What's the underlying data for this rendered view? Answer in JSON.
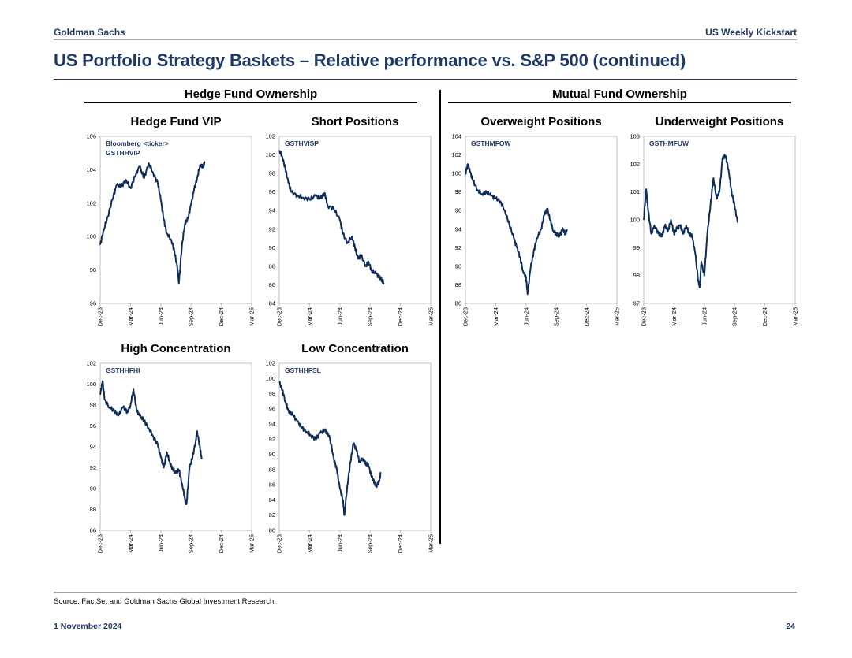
{
  "header": {
    "left": "Goldman Sachs",
    "right": "US Weekly Kickstart",
    "title": "US Portfolio Strategy Baskets – Relative performance vs. S&P 500 (continued)"
  },
  "sections": {
    "left": "Hedge Fund Ownership",
    "right": "Mutual Fund Ownership"
  },
  "footer": {
    "source": "Source: FactSet and Goldman Sachs Global Investment Research.",
    "date": "1 November 2024",
    "page": "24"
  },
  "colors": {
    "line": "#0d2d5b",
    "text": "#1f3864"
  },
  "chart_data": [
    {
      "id": "hfvip",
      "type": "line",
      "title": "Hedge Fund VIP",
      "annotation": [
        "Bloomberg <ticker>",
        "GSTHHVIP"
      ],
      "xticks": [
        "Dec-23",
        "Mar-24",
        "Jun-24",
        "Sep-24",
        "Dec-24",
        "Mar-25"
      ],
      "ylim": [
        96,
        106
      ],
      "yticks": [
        96,
        98,
        100,
        102,
        104,
        106
      ],
      "series": [
        {
          "name": "GSTHHVIP",
          "values": [
            [
              0,
              99.5
            ],
            [
              0.1,
              100.3
            ],
            [
              0.25,
              101.2
            ],
            [
              0.4,
              102.2
            ],
            [
              0.55,
              103.1
            ],
            [
              0.7,
              103.0
            ],
            [
              0.85,
              103.4
            ],
            [
              1.0,
              102.9
            ],
            [
              1.15,
              103.6
            ],
            [
              1.3,
              104.2
            ],
            [
              1.45,
              103.5
            ],
            [
              1.6,
              104.4
            ],
            [
              1.75,
              103.8
            ],
            [
              1.9,
              103.2
            ],
            [
              2.0,
              102.2
            ],
            [
              2.1,
              101.0
            ],
            [
              2.2,
              100.2
            ],
            [
              2.35,
              99.8
            ],
            [
              2.45,
              99.1
            ],
            [
              2.55,
              98.1
            ],
            [
              2.6,
              97.2
            ],
            [
              2.7,
              99.5
            ],
            [
              2.8,
              100.8
            ],
            [
              2.9,
              101.1
            ],
            [
              3.0,
              101.9
            ],
            [
              3.1,
              102.8
            ],
            [
              3.2,
              103.5
            ],
            [
              3.3,
              104.3
            ],
            [
              3.4,
              104.2
            ],
            [
              3.45,
              104.4
            ]
          ]
        }
      ]
    },
    {
      "id": "short",
      "type": "line",
      "title": "Short Positions",
      "annotation": [
        "GSTHVISP"
      ],
      "xticks": [
        "Dec-23",
        "Mar-24",
        "Jun-24",
        "Sep-24",
        "Dec-24",
        "Mar-25"
      ],
      "ylim": [
        84,
        102
      ],
      "yticks": [
        84,
        86,
        88,
        90,
        92,
        94,
        96,
        98,
        100,
        102
      ],
      "series": [
        {
          "name": "GSTHVISP",
          "values": [
            [
              0,
              100.5
            ],
            [
              0.1,
              99.8
            ],
            [
              0.2,
              98.5
            ],
            [
              0.3,
              97.0
            ],
            [
              0.4,
              96.0
            ],
            [
              0.6,
              95.6
            ],
            [
              0.8,
              95.4
            ],
            [
              1.0,
              95.2
            ],
            [
              1.2,
              95.6
            ],
            [
              1.35,
              95.3
            ],
            [
              1.5,
              95.9
            ],
            [
              1.6,
              94.5
            ],
            [
              1.8,
              94.2
            ],
            [
              2.0,
              93.0
            ],
            [
              2.1,
              91.5
            ],
            [
              2.25,
              90.5
            ],
            [
              2.4,
              91.2
            ],
            [
              2.5,
              90.0
            ],
            [
              2.6,
              88.8
            ],
            [
              2.7,
              89.2
            ],
            [
              2.85,
              88.0
            ],
            [
              2.95,
              88.5
            ],
            [
              3.05,
              87.5
            ],
            [
              3.2,
              87.2
            ],
            [
              3.3,
              86.8
            ],
            [
              3.4,
              86.5
            ],
            [
              3.45,
              86.2
            ]
          ]
        }
      ]
    },
    {
      "id": "overweight",
      "type": "line",
      "title": "Overweight Positions",
      "annotation": [
        "GSTHMFOW"
      ],
      "xticks": [
        "Dec-23",
        "Mar-24",
        "Jun-24",
        "Sep-24",
        "Dec-24",
        "Mar-25"
      ],
      "ylim": [
        86,
        104
      ],
      "yticks": [
        86,
        88,
        90,
        92,
        94,
        96,
        98,
        100,
        102,
        104
      ],
      "series": [
        {
          "name": "GSTHMFOW",
          "values": [
            [
              0,
              100.0
            ],
            [
              0.08,
              101.0
            ],
            [
              0.15,
              100.2
            ],
            [
              0.25,
              99.2
            ],
            [
              0.4,
              98.2
            ],
            [
              0.55,
              97.8
            ],
            [
              0.7,
              98.0
            ],
            [
              0.85,
              97.6
            ],
            [
              1.0,
              97.3
            ],
            [
              1.15,
              97.0
            ],
            [
              1.3,
              96.0
            ],
            [
              1.45,
              94.5
            ],
            [
              1.6,
              93.0
            ],
            [
              1.7,
              92.0
            ],
            [
              1.8,
              91.0
            ],
            [
              1.9,
              89.5
            ],
            [
              2.0,
              88.8
            ],
            [
              2.05,
              87.0
            ],
            [
              2.15,
              89.8
            ],
            [
              2.25,
              91.5
            ],
            [
              2.35,
              93.0
            ],
            [
              2.5,
              94.0
            ],
            [
              2.6,
              95.5
            ],
            [
              2.7,
              96.2
            ],
            [
              2.8,
              95.0
            ],
            [
              2.9,
              93.8
            ],
            [
              3.0,
              93.5
            ],
            [
              3.1,
              93.2
            ],
            [
              3.2,
              94.0
            ],
            [
              3.3,
              93.5
            ],
            [
              3.35,
              94.0
            ]
          ]
        }
      ]
    },
    {
      "id": "underweight",
      "type": "line",
      "title": "Underweight Positions",
      "annotation": [
        "GSTHMFUW"
      ],
      "xticks": [
        "Dec-23",
        "Mar-24",
        "Jun-24",
        "Sep-24",
        "Dec-24",
        "Mar-25"
      ],
      "ylim": [
        97,
        103
      ],
      "yticks": [
        97,
        98,
        99,
        100,
        101,
        102,
        103
      ],
      "series": [
        {
          "name": "GSTHMFUW",
          "values": [
            [
              0,
              100.0
            ],
            [
              0.08,
              101.1
            ],
            [
              0.15,
              100.3
            ],
            [
              0.25,
              99.5
            ],
            [
              0.35,
              99.8
            ],
            [
              0.5,
              99.5
            ],
            [
              0.6,
              99.4
            ],
            [
              0.7,
              99.8
            ],
            [
              0.8,
              99.6
            ],
            [
              0.9,
              100.0
            ],
            [
              1.0,
              99.5
            ],
            [
              1.1,
              99.7
            ],
            [
              1.2,
              99.8
            ],
            [
              1.3,
              99.5
            ],
            [
              1.4,
              99.8
            ],
            [
              1.5,
              99.5
            ],
            [
              1.6,
              99.4
            ],
            [
              1.7,
              98.8
            ],
            [
              1.8,
              97.8
            ],
            [
              1.85,
              97.6
            ],
            [
              1.9,
              98.5
            ],
            [
              2.0,
              98.0
            ],
            [
              2.1,
              99.5
            ],
            [
              2.2,
              100.5
            ],
            [
              2.3,
              101.5
            ],
            [
              2.4,
              100.8
            ],
            [
              2.5,
              101.0
            ],
            [
              2.6,
              102.2
            ],
            [
              2.7,
              102.3
            ],
            [
              2.8,
              101.8
            ],
            [
              2.9,
              101.0
            ],
            [
              3.0,
              100.5
            ],
            [
              3.1,
              99.9
            ]
          ]
        }
      ]
    },
    {
      "id": "highconc",
      "type": "line",
      "title": "High Concentration",
      "annotation": [
        "GSTHHFHI"
      ],
      "xticks": [
        "Dec-23",
        "Mar-24",
        "Jun-24",
        "Sep-24",
        "Dec-24",
        "Mar-25"
      ],
      "ylim": [
        86,
        102
      ],
      "yticks": [
        86,
        88,
        90,
        92,
        94,
        96,
        98,
        100,
        102
      ],
      "series": [
        {
          "name": "GSTHHFHI",
          "values": [
            [
              0,
              99.0
            ],
            [
              0.08,
              100.3
            ],
            [
              0.15,
              98.5
            ],
            [
              0.3,
              97.8
            ],
            [
              0.45,
              97.5
            ],
            [
              0.6,
              97.0
            ],
            [
              0.75,
              97.8
            ],
            [
              0.9,
              97.3
            ],
            [
              1.0,
              98.0
            ],
            [
              1.1,
              99.5
            ],
            [
              1.2,
              97.5
            ],
            [
              1.3,
              97.0
            ],
            [
              1.45,
              96.5
            ],
            [
              1.6,
              95.8
            ],
            [
              1.75,
              95.0
            ],
            [
              1.9,
              94.2
            ],
            [
              2.0,
              93.0
            ],
            [
              2.1,
              92.0
            ],
            [
              2.2,
              93.5
            ],
            [
              2.3,
              92.5
            ],
            [
              2.4,
              91.8
            ],
            [
              2.5,
              91.5
            ],
            [
              2.6,
              91.8
            ],
            [
              2.7,
              90.5
            ],
            [
              2.8,
              89.0
            ],
            [
              2.85,
              88.5
            ],
            [
              2.95,
              92.0
            ],
            [
              3.05,
              93.0
            ],
            [
              3.15,
              94.5
            ],
            [
              3.2,
              95.5
            ],
            [
              3.3,
              93.8
            ],
            [
              3.35,
              92.8
            ]
          ]
        }
      ]
    },
    {
      "id": "lowconc",
      "type": "line",
      "title": "Low Concentration",
      "annotation": [
        "GSTHHFSL"
      ],
      "xticks": [
        "Dec-23",
        "Mar-24",
        "Jun-24",
        "Sep-24",
        "Dec-24",
        "Mar-25"
      ],
      "ylim": [
        80,
        102
      ],
      "yticks": [
        80,
        82,
        84,
        86,
        88,
        90,
        92,
        94,
        96,
        98,
        100,
        102
      ],
      "series": [
        {
          "name": "GSTHHFSL",
          "values": [
            [
              0,
              99.5
            ],
            [
              0.1,
              98.5
            ],
            [
              0.2,
              97.0
            ],
            [
              0.3,
              95.8
            ],
            [
              0.45,
              95.2
            ],
            [
              0.6,
              94.3
            ],
            [
              0.75,
              93.5
            ],
            [
              0.9,
              93.0
            ],
            [
              1.05,
              92.5
            ],
            [
              1.2,
              92.0
            ],
            [
              1.35,
              92.8
            ],
            [
              1.5,
              93.2
            ],
            [
              1.65,
              92.5
            ],
            [
              1.8,
              89.5
            ],
            [
              1.9,
              88.0
            ],
            [
              2.0,
              85.5
            ],
            [
              2.1,
              84.0
            ],
            [
              2.15,
              82.0
            ],
            [
              2.25,
              86.0
            ],
            [
              2.35,
              89.0
            ],
            [
              2.45,
              91.5
            ],
            [
              2.55,
              90.5
            ],
            [
              2.65,
              89.0
            ],
            [
              2.75,
              89.5
            ],
            [
              2.85,
              88.8
            ],
            [
              2.95,
              88.5
            ],
            [
              3.05,
              87.0
            ],
            [
              3.15,
              86.3
            ],
            [
              3.2,
              85.8
            ],
            [
              3.3,
              86.5
            ],
            [
              3.35,
              87.5
            ]
          ]
        }
      ]
    }
  ]
}
